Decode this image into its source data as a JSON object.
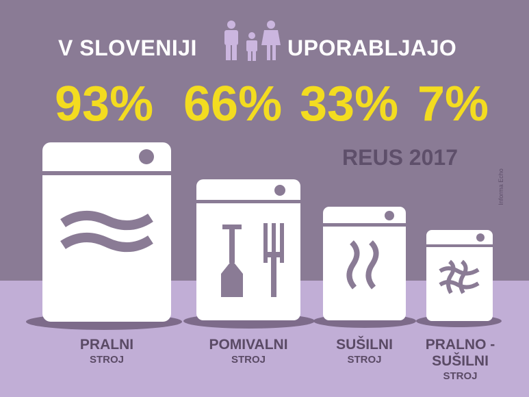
{
  "title": {
    "left": "V SLOVENIJI",
    "right": "UPORABLJAJO"
  },
  "percentages": [
    "93%",
    "66%",
    "33%",
    "7%"
  ],
  "source": "REUS 2017",
  "credit": "Informa Echo",
  "labels": [
    {
      "line1": "PRALNI",
      "line2": "STROJ"
    },
    {
      "line1": "POMIVALNI",
      "line2": "STROJ"
    },
    {
      "line1": "SUŠILNI",
      "line2": "STROJ"
    },
    {
      "line1": "PRALNO -",
      "line1b": "SUŠILNI",
      "line2": "STROJ"
    }
  ],
  "colors": {
    "background": "#8a7b95",
    "floor": "#c1aed6",
    "accent": "#f3dc20",
    "icon": "#8a7b95",
    "label": "#5a4a65"
  }
}
